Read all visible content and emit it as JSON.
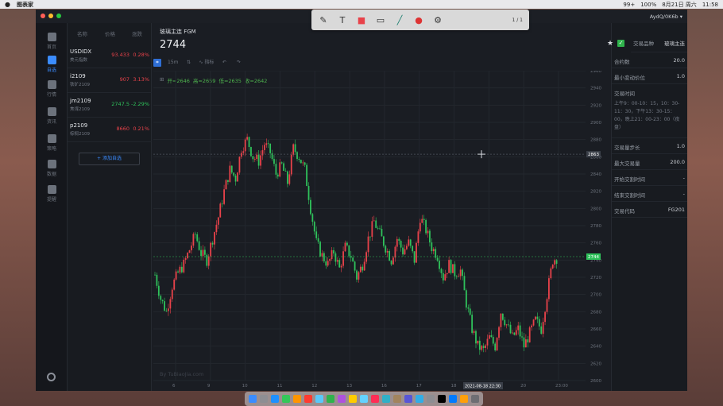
{
  "menubar": {
    "app_name": "图表家",
    "status_items": [
      "99+",
      "100%",
      "8月21日 周六",
      "11:58"
    ]
  },
  "window": {
    "account_label": "AydQ/0K6b"
  },
  "tool_palette": {
    "page_indicator": "1 / 1",
    "tools": [
      "pencil-icon",
      "text-icon",
      "color-fill-icon",
      "shape-icon",
      "line-icon",
      "record-icon",
      "gear-icon"
    ]
  },
  "nav": {
    "items": [
      {
        "label": "首页",
        "icon": "home-icon",
        "active": false
      },
      {
        "label": "自选",
        "icon": "chart-icon",
        "active": true
      },
      {
        "label": "行情",
        "icon": "candles-icon",
        "active": false
      },
      {
        "label": "资讯",
        "icon": "news-icon",
        "active": false
      },
      {
        "label": "策略",
        "icon": "ai-icon",
        "active": false
      },
      {
        "label": "数据",
        "icon": "data-icon",
        "active": false
      },
      {
        "label": "提醒",
        "icon": "shield-icon",
        "active": false
      }
    ]
  },
  "watchlist": {
    "headers": [
      "名称",
      "价格",
      "涨跌"
    ],
    "rows": [
      {
        "symbol": "USDIDX",
        "name": "美元指数",
        "price": "93.433",
        "change": "0.28%",
        "direction": "up"
      },
      {
        "symbol": "i2109",
        "name": "铁矿2109",
        "price": "907",
        "change": "3.13%",
        "direction": "up"
      },
      {
        "symbol": "jm2109",
        "name": "焦煤2109",
        "price": "2747.5",
        "change": "-2.29%",
        "direction": "down"
      },
      {
        "symbol": "p2109",
        "name": "棕榈2109",
        "price": "8660",
        "change": "0.21%",
        "direction": "up"
      }
    ],
    "add_label": "+ 添加自选"
  },
  "chart_header": {
    "name": "玻璃主连 FGM",
    "price": "2744",
    "interval": "15m",
    "indicator_label": "指标",
    "ohlc": {
      "open": "开=2646",
      "high": "高=2659",
      "low": "低=2635",
      "close": "收=2642"
    },
    "watermark": "By TuBiaoJia.com",
    "crosshair_time_label": "2021-08-18  22:30"
  },
  "chart_data": {
    "type": "candlestick",
    "x_tick_labels": [
      "6",
      "9",
      "10",
      "11",
      "12",
      "13",
      "16",
      "17",
      "18",
      "19",
      "20",
      "23:00"
    ],
    "y_tick_labels": [
      "2960",
      "2940",
      "2920",
      "2900",
      "2880",
      "2860",
      "2840",
      "2820",
      "2800",
      "2780",
      "2760",
      "2740",
      "2720",
      "2700",
      "2680",
      "2660",
      "2640",
      "2620",
      "2600"
    ],
    "ylim": [
      2600,
      2960
    ],
    "current_price": "2744",
    "crosshair_price": "2863",
    "up_color": "#e8424a",
    "down_color": "#2fc25b",
    "close_path": [
      2723,
      2695,
      2680,
      2710,
      2725,
      2735,
      2752,
      2770,
      2748,
      2740,
      2765,
      2790,
      2820,
      2845,
      2835,
      2870,
      2880,
      2860,
      2855,
      2875,
      2865,
      2840,
      2850,
      2830,
      2870,
      2860,
      2845,
      2800,
      2760,
      2745,
      2735,
      2750,
      2730,
      2755,
      2745,
      2720,
      2735,
      2765,
      2785,
      2770,
      2755,
      2740,
      2765,
      2750,
      2760,
      2740,
      2790,
      2775,
      2755,
      2745,
      2720,
      2735,
      2725,
      2728,
      2690,
      2660,
      2640,
      2635,
      2650,
      2640,
      2680,
      2665,
      2650,
      2660,
      2640,
      2655,
      2670,
      2660,
      2700,
      2740,
      2744
    ]
  },
  "info_panel": {
    "rows": [
      {
        "key": "交易品种",
        "value": "玻璃主连"
      },
      {
        "key": "合约数",
        "value": "20.0"
      },
      {
        "key": "最小变动价位",
        "value": "1.0"
      },
      {
        "key": "交易时间",
        "value": ""
      },
      {
        "key": "交易量步长",
        "value": "1.0"
      },
      {
        "key": "最大交易量",
        "value": "200.0"
      },
      {
        "key": "开始交割时间",
        "value": "-"
      },
      {
        "key": "结束交割时间",
        "value": "-"
      },
      {
        "key": "交易代码",
        "value": "FG201"
      }
    ],
    "trading_hours": "上午9：00-10：15，10：30-11：30，下午13：30-15：00，晚上21：00-23：00（夜盘）"
  },
  "dock": {
    "apps": [
      "finder-icon",
      "launchpad-icon",
      "safari-icon",
      "app-icon",
      "app-icon",
      "photos-icon",
      "messages-icon",
      "wechat-icon",
      "app-icon",
      "app-icon",
      "app-icon",
      "app-icon",
      "app-icon",
      "app-icon",
      "app-icon",
      "app-icon",
      "app-icon",
      "app-icon",
      "app-icon",
      "app-icon",
      "trash-icon"
    ]
  }
}
